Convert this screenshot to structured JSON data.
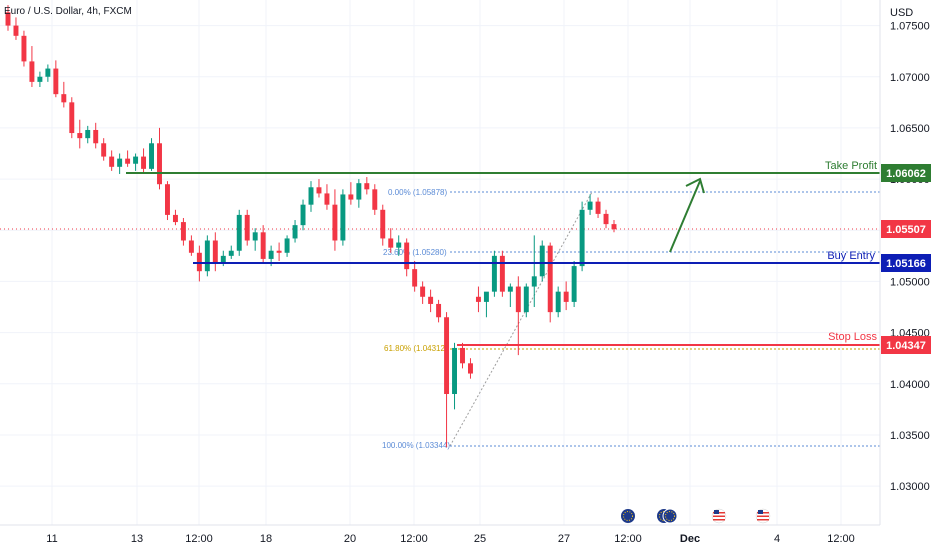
{
  "header": {
    "title": "Euro / U.S. Dollar, 4h, FXCM"
  },
  "price_axis": {
    "currency": "USD",
    "ticks": [
      "1.07500",
      "1.07000",
      "1.06500",
      "1.06000",
      "1.05500",
      "1.05000",
      "1.04500",
      "1.04000",
      "1.03500",
      "1.03000"
    ]
  },
  "time_axis": {
    "labels": [
      "11",
      "13",
      "12:00",
      "18",
      "20",
      "12:00",
      "25",
      "27",
      "12:00",
      "Dec",
      "4",
      "12:00"
    ]
  },
  "levels": {
    "take_profit": {
      "label": "Take Profit",
      "price": "1.06062",
      "color": "#2e7d32"
    },
    "buy_entry": {
      "label": "Buy Entry",
      "price": "1.05166",
      "color": "#0d1eb5"
    },
    "stop_loss": {
      "label": "Stop Loss",
      "price": "1.04347",
      "color": "#f23645"
    },
    "current": {
      "price": "1.05507",
      "color": "#f23645"
    }
  },
  "fib": {
    "levels": [
      {
        "label": "0.00% (1.05878)",
        "color": "#5b8bd6"
      },
      {
        "label": "23.60% (1.05280)",
        "color": "#5b8bd6"
      },
      {
        "label": "61.80% (1.04312)",
        "color": "#c9a000"
      },
      {
        "label": "100.00% (1.03344)",
        "color": "#5b8bd6"
      }
    ]
  },
  "colors": {
    "up": "#089981",
    "down": "#f23645",
    "grid": "#f0f3fa"
  },
  "chart_data": {
    "type": "candlestick",
    "symbol": "Euro / U.S. Dollar",
    "interval": "4h",
    "source": "FXCM",
    "y_range": [
      1.0262,
      1.0775
    ],
    "x_labels": [
      "11",
      "13",
      "12:00",
      "18",
      "20",
      "12:00",
      "25",
      "27",
      "12:00",
      "Dec",
      "4",
      "12:00"
    ],
    "levels": {
      "take_profit": 1.06062,
      "buy_entry": 1.05166,
      "stop_loss": 1.04347,
      "last_price": 1.05507
    },
    "fib_levels": [
      [
        0.0,
        1.05878
      ],
      [
        23.6,
        1.0528
      ],
      [
        61.8,
        1.04312
      ],
      [
        100.0,
        1.03344
      ]
    ],
    "candles": [
      [
        1.0763,
        1.077,
        1.0745,
        1.075
      ],
      [
        1.075,
        1.0758,
        1.0736,
        1.074
      ],
      [
        1.074,
        1.0745,
        1.071,
        1.0715
      ],
      [
        1.0715,
        1.073,
        1.069,
        1.0695
      ],
      [
        1.0695,
        1.0705,
        1.069,
        1.07
      ],
      [
        1.07,
        1.0712,
        1.0695,
        1.0708
      ],
      [
        1.0708,
        1.0716,
        1.068,
        1.0683
      ],
      [
        1.0683,
        1.0695,
        1.067,
        1.0675
      ],
      [
        1.0675,
        1.068,
        1.064,
        1.0645
      ],
      [
        1.0645,
        1.0658,
        1.063,
        1.064
      ],
      [
        1.064,
        1.0652,
        1.0635,
        1.0648
      ],
      [
        1.0648,
        1.0655,
        1.063,
        1.0635
      ],
      [
        1.0635,
        1.064,
        1.0618,
        1.0622
      ],
      [
        1.0622,
        1.0628,
        1.0608,
        1.0612
      ],
      [
        1.0612,
        1.0625,
        1.0605,
        1.062
      ],
      [
        1.062,
        1.0628,
        1.0612,
        1.0615
      ],
      [
        1.0615,
        1.0625,
        1.0608,
        1.0622
      ],
      [
        1.0622,
        1.063,
        1.0605,
        1.061
      ],
      [
        1.061,
        1.064,
        1.0608,
        1.0635
      ],
      [
        1.0635,
        1.065,
        1.059,
        1.0595
      ],
      [
        1.0595,
        1.0598,
        1.056,
        1.0565
      ],
      [
        1.0565,
        1.057,
        1.0555,
        1.0558
      ],
      [
        1.0558,
        1.0562,
        1.0535,
        1.054
      ],
      [
        1.054,
        1.0545,
        1.0525,
        1.0528
      ],
      [
        1.0528,
        1.0535,
        1.05,
        1.051
      ],
      [
        1.051,
        1.0545,
        1.0505,
        1.054
      ],
      [
        1.054,
        1.0548,
        1.051,
        1.0518
      ],
      [
        1.0518,
        1.053,
        1.0515,
        1.0525
      ],
      [
        1.0525,
        1.0535,
        1.0522,
        1.053
      ],
      [
        1.053,
        1.057,
        1.0525,
        1.0565
      ],
      [
        1.0565,
        1.057,
        1.0535,
        1.054
      ],
      [
        1.054,
        1.0552,
        1.053,
        1.0548
      ],
      [
        1.0548,
        1.0555,
        1.0518,
        1.0522
      ],
      [
        1.0522,
        1.0535,
        1.0515,
        1.053
      ],
      [
        1.053,
        1.0538,
        1.052,
        1.0528
      ],
      [
        1.0528,
        1.0545,
        1.0524,
        1.0542
      ],
      [
        1.0542,
        1.056,
        1.0538,
        1.0555
      ],
      [
        1.0555,
        1.058,
        1.055,
        1.0575
      ],
      [
        1.0575,
        1.0598,
        1.0568,
        1.0592
      ],
      [
        1.0592,
        1.06,
        1.0582,
        1.0586
      ],
      [
        1.0586,
        1.0595,
        1.057,
        1.0575
      ],
      [
        1.0575,
        1.059,
        1.053,
        1.054
      ],
      [
        1.054,
        1.059,
        1.0535,
        1.0585
      ],
      [
        1.0585,
        1.0597,
        1.0575,
        1.058
      ],
      [
        1.058,
        1.06,
        1.0572,
        1.0596
      ],
      [
        1.0596,
        1.0602,
        1.0585,
        1.059
      ],
      [
        1.059,
        1.0595,
        1.0565,
        1.057
      ],
      [
        1.057,
        1.0575,
        1.0535,
        1.0542
      ],
      [
        1.0542,
        1.0552,
        1.0528,
        1.0533
      ],
      [
        1.0533,
        1.0545,
        1.0525,
        1.0538
      ],
      [
        1.0538,
        1.0542,
        1.0505,
        1.0512
      ],
      [
        1.0512,
        1.052,
        1.049,
        1.0495
      ],
      [
        1.0495,
        1.05,
        1.0478,
        1.0485
      ],
      [
        1.0485,
        1.0492,
        1.047,
        1.0478
      ],
      [
        1.0478,
        1.0482,
        1.046,
        1.0465
      ],
      [
        1.0465,
        1.047,
        1.0338,
        1.039
      ],
      [
        1.039,
        1.044,
        1.0375,
        1.0435
      ],
      [
        1.0435,
        1.044,
        1.0415,
        1.042
      ],
      [
        1.042,
        1.0425,
        1.0405,
        1.041
      ],
      [
        1.0485,
        1.0495,
        1.047,
        1.048
      ],
      [
        1.048,
        1.0488,
        1.0465,
        1.049
      ],
      [
        1.049,
        1.053,
        1.0485,
        1.0525
      ],
      [
        1.0525,
        1.053,
        1.0485,
        1.049
      ],
      [
        1.049,
        1.0498,
        1.0475,
        1.0495
      ],
      [
        1.0495,
        1.0505,
        1.0428,
        1.047
      ],
      [
        1.047,
        1.0498,
        1.0465,
        1.0495
      ],
      [
        1.0495,
        1.0545,
        1.0475,
        1.0505
      ],
      [
        1.0505,
        1.054,
        1.05,
        1.0535
      ],
      [
        1.0535,
        1.0538,
        1.046,
        1.047
      ],
      [
        1.047,
        1.0495,
        1.0465,
        1.049
      ],
      [
        1.049,
        1.05,
        1.0472,
        1.048
      ],
      [
        1.048,
        1.052,
        1.0475,
        1.0515
      ],
      [
        1.0515,
        1.0578,
        1.051,
        1.057
      ],
      [
        1.057,
        1.0585,
        1.0565,
        1.0578
      ],
      [
        1.0578,
        1.0582,
        1.0562,
        1.0566
      ],
      [
        1.0566,
        1.057,
        1.0552,
        1.0556
      ],
      [
        1.0556,
        1.056,
        1.0548,
        1.0551
      ]
    ]
  }
}
